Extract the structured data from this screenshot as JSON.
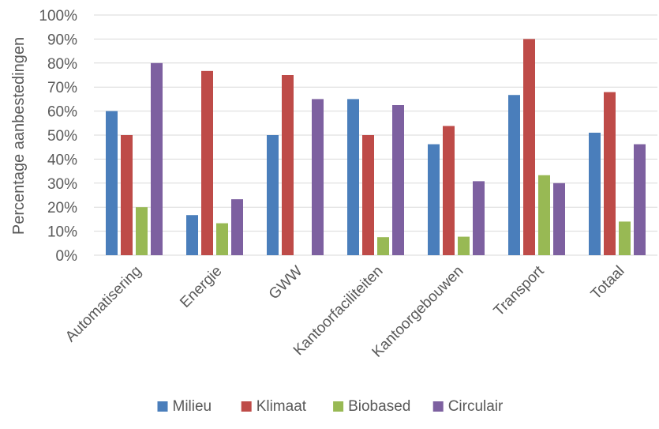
{
  "chart_data": {
    "type": "bar",
    "title": "",
    "xlabel": "",
    "ylabel": "Percentage aanbestedingen",
    "ylim": [
      0,
      100
    ],
    "ytick_labels": [
      "0%",
      "10%",
      "20%",
      "30%",
      "40%",
      "50%",
      "60%",
      "70%",
      "80%",
      "90%",
      "100%"
    ],
    "grid": true,
    "legend_position": "bottom",
    "categories": [
      "Automatisering",
      "Energie",
      "GWW",
      "Kantoorfaciliteiten",
      "Kantoorgebouwen",
      "Transport",
      "Totaal"
    ],
    "series": [
      {
        "name": "Milieu",
        "color": "#4a7ebb",
        "values": [
          60,
          16.7,
          50,
          65,
          46.2,
          66.7,
          51
        ]
      },
      {
        "name": "Klimaat",
        "color": "#be4b48",
        "values": [
          50,
          76.7,
          75,
          50,
          53.8,
          90,
          67.9
        ]
      },
      {
        "name": "Biobased",
        "color": "#98b954",
        "values": [
          20,
          13.3,
          0,
          7.5,
          7.7,
          33.3,
          14
        ]
      },
      {
        "name": "Circulair",
        "color": "#7d60a0",
        "values": [
          80,
          23.3,
          65,
          62.5,
          30.8,
          30,
          46.2
        ]
      }
    ]
  }
}
